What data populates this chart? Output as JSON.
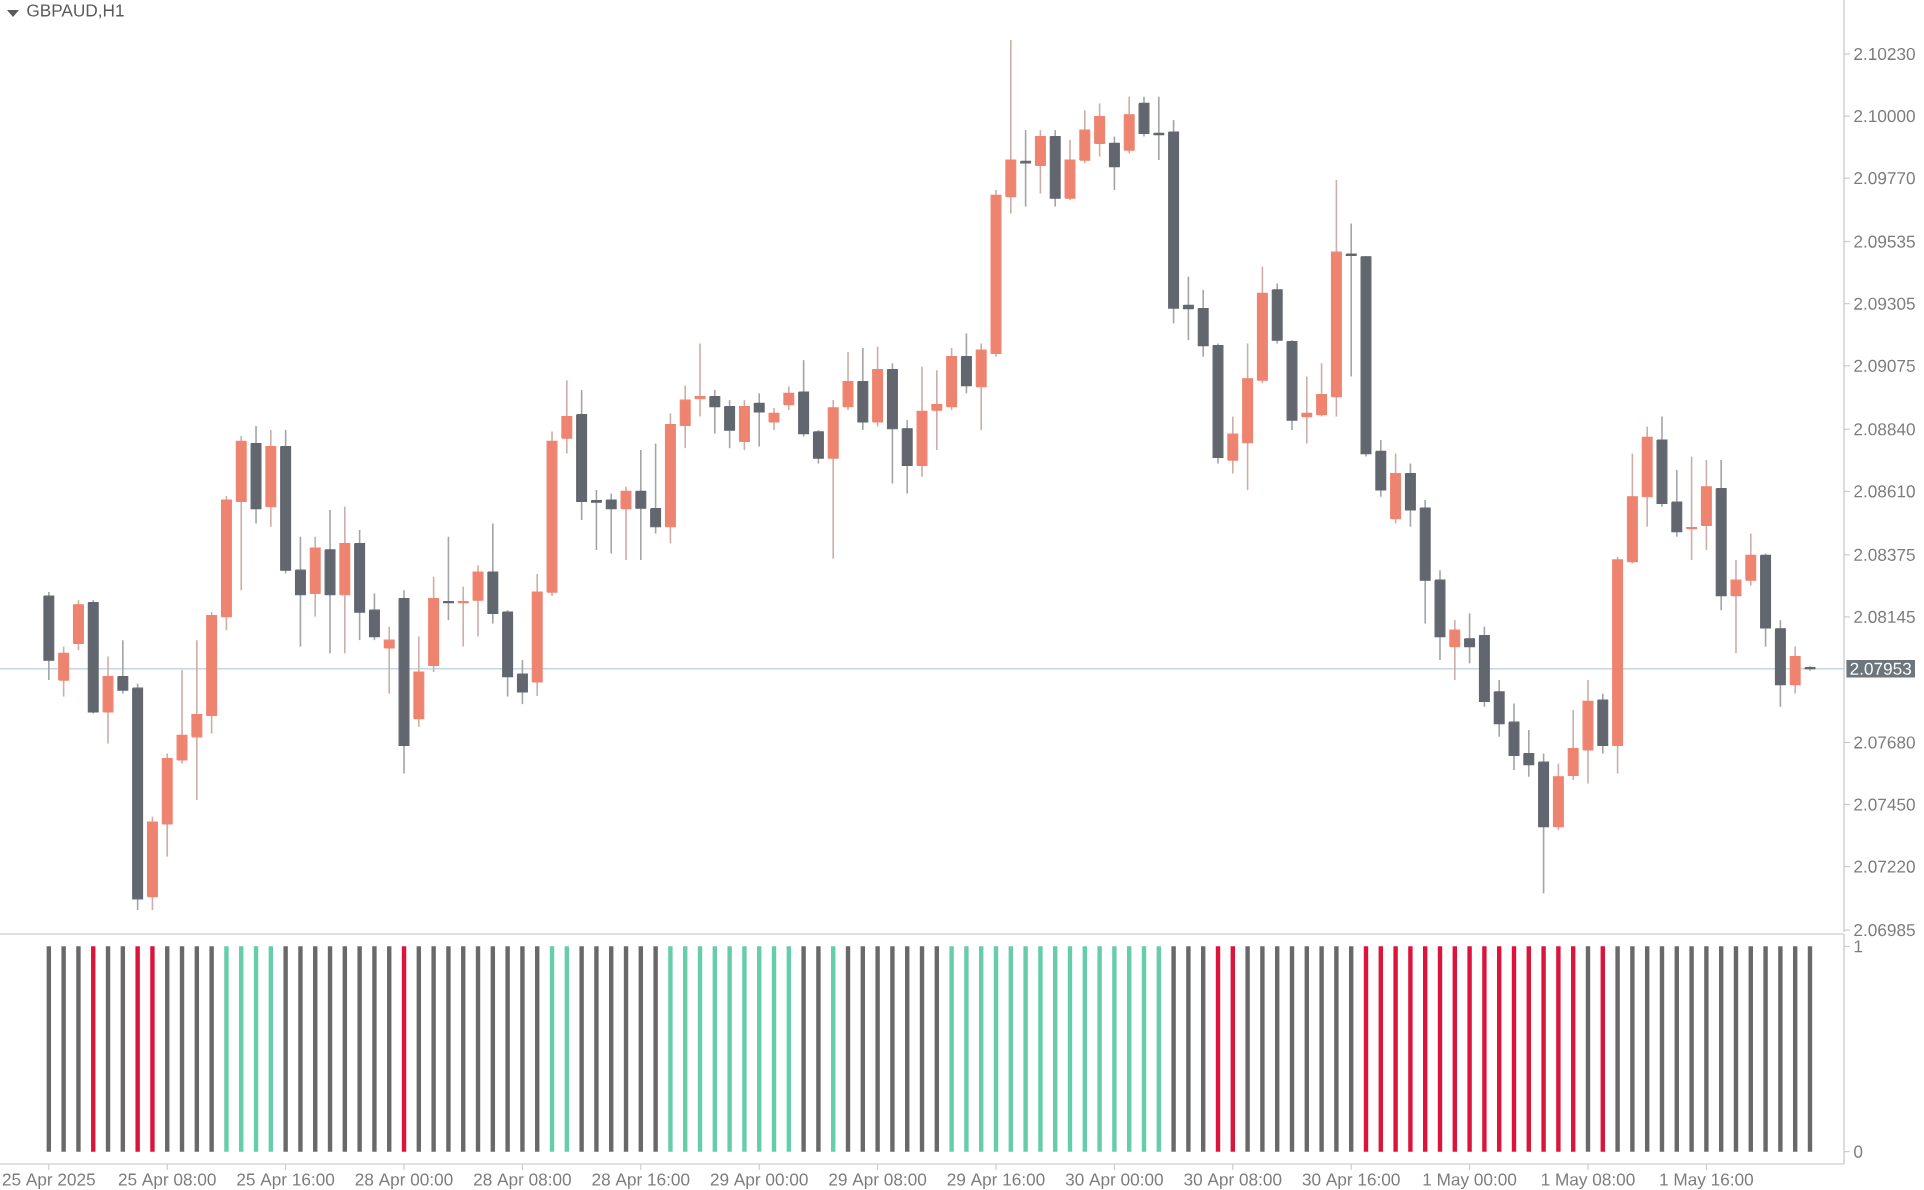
{
  "chart_data": [
    {
      "type": "candlestick",
      "title": "GBPAUD,H1",
      "categories": [
        null,
        null,
        null,
        null,
        null,
        null,
        null,
        null,
        null,
        null,
        null,
        null,
        null,
        null,
        null,
        null,
        null,
        null,
        null,
        null,
        null,
        null,
        null,
        null,
        null,
        null,
        null,
        null,
        null,
        null,
        null,
        null,
        null,
        null,
        null,
        null,
        null,
        null,
        null,
        null,
        null,
        null,
        null,
        null,
        null,
        null,
        null,
        null,
        null,
        null,
        null,
        null,
        null,
        null,
        null,
        null,
        null,
        null,
        null,
        null,
        null,
        null,
        null,
        null,
        null,
        null,
        null,
        null,
        null,
        null,
        null,
        null,
        null,
        null,
        null,
        null,
        null,
        null,
        null,
        null,
        null,
        null,
        null,
        null,
        null,
        null,
        null,
        null,
        null,
        null,
        null,
        null,
        null,
        null,
        null,
        null,
        null,
        null,
        null,
        null,
        null,
        null,
        null,
        null,
        null,
        null,
        null,
        null,
        null,
        null,
        null,
        null,
        null,
        null,
        null,
        null,
        null,
        null,
        null,
        null
      ],
      "ohlc": [
        [
          2.08222,
          2.08237,
          2.07911,
          2.07985
        ],
        [
          2.07911,
          2.08035,
          2.0785,
          2.0801
        ],
        [
          2.08047,
          2.08207,
          2.08022,
          2.0819
        ],
        [
          2.08198,
          2.08207,
          2.07787,
          2.07793
        ],
        [
          2.07793,
          2.07998,
          2.07676,
          2.07924
        ],
        [
          2.07924,
          2.08059,
          2.07861,
          2.07874
        ],
        [
          2.07881,
          2.07898,
          2.07059,
          2.07101
        ],
        [
          2.07109,
          2.07405,
          2.07059,
          2.07385
        ],
        [
          2.07378,
          2.07639,
          2.07257,
          2.0762
        ],
        [
          2.07615,
          2.07948,
          2.07602,
          2.07706
        ],
        [
          2.07701,
          2.08059,
          2.07467,
          2.07783
        ],
        [
          2.0778,
          2.08163,
          2.07713,
          2.0815
        ],
        [
          2.08146,
          2.08593,
          2.08096,
          2.08578
        ],
        [
          2.08573,
          2.08815,
          2.08244,
          2.08795
        ],
        [
          2.08787,
          2.08852,
          2.08491,
          2.08546
        ],
        [
          2.08553,
          2.08837,
          2.08479,
          2.08776
        ],
        [
          2.08776,
          2.08837,
          2.08306,
          2.08318
        ],
        [
          2.08318,
          2.08442,
          2.08035,
          2.08227
        ],
        [
          2.08232,
          2.08442,
          2.08146,
          2.084
        ],
        [
          2.08393,
          2.08541,
          2.0801,
          2.08227
        ],
        [
          2.08227,
          2.08553,
          2.0801,
          2.08417
        ],
        [
          2.08417,
          2.08467,
          2.08059,
          2.08163
        ],
        [
          2.0817,
          2.08232,
          2.08059,
          2.08072
        ],
        [
          2.0803,
          2.08109,
          2.07861,
          2.08059
        ],
        [
          2.08213,
          2.08244,
          2.07565,
          2.07669
        ],
        [
          2.07768,
          2.08072,
          2.07738,
          2.07941
        ],
        [
          2.07965,
          2.08294,
          2.07941,
          2.08213
        ],
        [
          2.08202,
          2.08442,
          2.08133,
          2.08198
        ],
        [
          2.08198,
          2.08257,
          2.08035,
          2.08202
        ],
        [
          2.08207,
          2.08336,
          2.08072,
          2.08311
        ],
        [
          2.08311,
          2.08491,
          2.08121,
          2.08158
        ],
        [
          2.08163,
          2.0817,
          2.0785,
          2.07924
        ],
        [
          2.07933,
          2.07985,
          2.07822,
          2.07867
        ],
        [
          2.07904,
          2.08304,
          2.07852,
          2.08237
        ],
        [
          2.08237,
          2.08832,
          2.08222,
          2.08795
        ],
        [
          2.08807,
          2.09022,
          2.0875,
          2.08887
        ],
        [
          2.08894,
          2.08985,
          2.08504,
          2.08573
        ],
        [
          2.08576,
          2.08615,
          2.08393,
          2.0857
        ],
        [
          2.08578,
          2.08602,
          2.0838,
          2.08546
        ],
        [
          2.08546,
          2.08627,
          2.08356,
          2.0861
        ],
        [
          2.0861,
          2.08763,
          2.08356,
          2.08548
        ],
        [
          2.08546,
          2.08787,
          2.08454,
          2.08479
        ],
        [
          2.08479,
          2.08899,
          2.08417,
          2.08857
        ],
        [
          2.08854,
          2.09002,
          2.0877,
          2.08948
        ],
        [
          2.08953,
          2.09158,
          2.08887,
          2.08961
        ],
        [
          2.08961,
          2.08985,
          2.08824,
          2.08924
        ],
        [
          2.08924,
          2.08948,
          2.0877,
          2.08837
        ],
        [
          2.08795,
          2.08948,
          2.08763,
          2.08924
        ],
        [
          2.08936,
          2.08973,
          2.08776,
          2.08904
        ],
        [
          2.08867,
          2.08919,
          2.08837,
          2.08899
        ],
        [
          2.08931,
          2.08998,
          2.08911,
          2.08973
        ],
        [
          2.08978,
          2.09096,
          2.08813,
          2.08824
        ],
        [
          2.0883,
          2.08837,
          2.08713,
          2.08733
        ],
        [
          2.08733,
          2.08948,
          2.08361,
          2.08919
        ],
        [
          2.08924,
          2.09126,
          2.08911,
          2.09017
        ],
        [
          2.09017,
          2.09141,
          2.08837,
          2.08867
        ],
        [
          2.08867,
          2.09146,
          2.0885,
          2.09061
        ],
        [
          2.09061,
          2.09084,
          2.08639,
          2.08842
        ],
        [
          2.08842,
          2.08874,
          2.08602,
          2.08706
        ],
        [
          2.08706,
          2.09072,
          2.08664,
          2.08906
        ],
        [
          2.08911,
          2.09059,
          2.08763,
          2.08931
        ],
        [
          2.08924,
          2.09141,
          2.08911,
          2.09109
        ],
        [
          2.09109,
          2.09195,
          2.08973,
          2.09002
        ],
        [
          2.08998,
          2.09158,
          2.08837,
          2.09133
        ],
        [
          2.09121,
          2.09726,
          2.09109,
          2.09706
        ],
        [
          2.09702,
          2.10282,
          2.09639,
          2.09837
        ],
        [
          2.09832,
          2.09948,
          2.09665,
          2.09827
        ],
        [
          2.09817,
          2.09948,
          2.09713,
          2.09924
        ],
        [
          2.09924,
          2.09948,
          2.09665,
          2.09696
        ],
        [
          2.09696,
          2.09911,
          2.09689,
          2.09837
        ],
        [
          2.09837,
          2.10022,
          2.09825,
          2.09948
        ],
        [
          2.09899,
          2.10047,
          2.0985,
          2.09998
        ],
        [
          2.09899,
          2.09924,
          2.09726,
          2.09813
        ],
        [
          2.09874,
          2.10072,
          2.09862,
          2.10005
        ],
        [
          2.10047,
          2.10072,
          2.09924,
          2.09936
        ],
        [
          2.09936,
          2.10072,
          2.09837,
          2.09931
        ],
        [
          2.09941,
          2.09985,
          2.09232,
          2.09289
        ],
        [
          2.09299,
          2.09405,
          2.0917,
          2.09287
        ],
        [
          2.09287,
          2.09356,
          2.09109,
          2.0915
        ],
        [
          2.0915,
          2.09158,
          2.08713,
          2.08736
        ],
        [
          2.08726,
          2.08887,
          2.08676,
          2.08822
        ],
        [
          2.0879,
          2.09158,
          2.08615,
          2.09027
        ],
        [
          2.09022,
          2.09442,
          2.0901,
          2.09343
        ],
        [
          2.09356,
          2.0938,
          2.09158,
          2.0917
        ],
        [
          2.09165,
          2.0917,
          2.08837,
          2.08874
        ],
        [
          2.08887,
          2.09035,
          2.08787,
          2.08899
        ],
        [
          2.08894,
          2.09084,
          2.08887,
          2.08968
        ],
        [
          2.08961,
          2.09763,
          2.08887,
          2.09496
        ],
        [
          2.09489,
          2.09602,
          2.09035,
          2.09484
        ],
        [
          2.09479,
          2.09481,
          2.08739,
          2.0875
        ],
        [
          2.08758,
          2.088,
          2.0859,
          2.08615
        ],
        [
          2.08509,
          2.0875,
          2.08491,
          2.08676
        ],
        [
          2.08676,
          2.08713,
          2.08479,
          2.08541
        ],
        [
          2.08548,
          2.08578,
          2.08121,
          2.08281
        ],
        [
          2.08281,
          2.08318,
          2.07985,
          2.08072
        ],
        [
          2.08035,
          2.08133,
          2.07911,
          2.08096
        ],
        [
          2.08064,
          2.08158,
          2.07973,
          2.08035
        ],
        [
          2.08076,
          2.08109,
          2.07812,
          2.07832
        ],
        [
          2.07867,
          2.07911,
          2.07701,
          2.0775
        ],
        [
          2.07755,
          2.07824,
          2.07578,
          2.07632
        ],
        [
          2.07639,
          2.07726,
          2.07553,
          2.07598
        ],
        [
          2.07607,
          2.07639,
          2.07121,
          2.07368
        ],
        [
          2.07368,
          2.07602,
          2.07355,
          2.07553
        ],
        [
          2.07558,
          2.078,
          2.07541,
          2.07657
        ],
        [
          2.07652,
          2.07911,
          2.07528,
          2.07832
        ],
        [
          2.07837,
          2.07861,
          2.07639,
          2.07669
        ],
        [
          2.07669,
          2.08368,
          2.07565,
          2.08356
        ],
        [
          2.0835,
          2.0875,
          2.08343,
          2.0859
        ],
        [
          2.0859,
          2.0885,
          2.08479,
          2.0881
        ],
        [
          2.088,
          2.08887,
          2.08553,
          2.08565
        ],
        [
          2.0857,
          2.08689,
          2.08442,
          2.08461
        ],
        [
          2.08472,
          2.08739,
          2.08356,
          2.08476
        ],
        [
          2.08484,
          2.08726,
          2.08393,
          2.08627
        ],
        [
          2.0862,
          2.08726,
          2.0817,
          2.08224
        ],
        [
          2.08224,
          2.08356,
          2.0801,
          2.08281
        ],
        [
          2.08281,
          2.08454,
          2.08261,
          2.08373
        ],
        [
          2.08373,
          2.0838,
          2.08035,
          2.08104
        ],
        [
          2.08101,
          2.08133,
          2.07812,
          2.07894
        ],
        [
          2.07894,
          2.08035,
          2.07861,
          2.07998
        ],
        [
          2.07957,
          2.07962,
          2.07946,
          2.07953
        ]
      ],
      "colors": [
        "#62666e",
        "#ee8470",
        "#ee8470",
        "#62666e",
        "#ee8470",
        "#62666e",
        "#62666e",
        "#ee8470",
        "#ee8470",
        "#ee8470",
        "#ee8470",
        "#ee8470",
        "#ee8470",
        "#ee8470",
        "#62666e",
        "#ee8470",
        "#62666e",
        "#62666e",
        "#ee8470",
        "#62666e",
        "#ee8470",
        "#62666e",
        "#62666e",
        "#ee8470",
        "#62666e",
        "#ee8470",
        "#ee8470",
        "#62666e",
        "#ee8470",
        "#ee8470",
        "#62666e",
        "#62666e",
        "#62666e",
        "#ee8470",
        "#ee8470",
        "#ee8470",
        "#62666e",
        "#62666e",
        "#62666e",
        "#ee8470",
        "#62666e",
        "#62666e",
        "#ee8470",
        "#ee8470",
        "#ee8470",
        "#62666e",
        "#62666e",
        "#ee8470",
        "#62666e",
        "#ee8470",
        "#ee8470",
        "#62666e",
        "#62666e",
        "#ee8470",
        "#ee8470",
        "#62666e",
        "#ee8470",
        "#62666e",
        "#62666e",
        "#ee8470",
        "#ee8470",
        "#ee8470",
        "#62666e",
        "#ee8470",
        "#ee8470",
        "#ee8470",
        "#62666e",
        "#ee8470",
        "#62666e",
        "#ee8470",
        "#ee8470",
        "#ee8470",
        "#62666e",
        "#ee8470",
        "#62666e",
        "#62666e",
        "#62666e",
        "#62666e",
        "#62666e",
        "#62666e",
        "#ee8470",
        "#ee8470",
        "#ee8470",
        "#62666e",
        "#62666e",
        "#ee8470",
        "#ee8470",
        "#ee8470",
        "#62666e",
        "#62666e",
        "#62666e",
        "#ee8470",
        "#62666e",
        "#62666e",
        "#62666e",
        "#ee8470",
        "#62666e",
        "#62666e",
        "#62666e",
        "#62666e",
        "#62666e",
        "#62666e",
        "#ee8470",
        "#ee8470",
        "#ee8470",
        "#62666e",
        "#ee8470",
        "#ee8470",
        "#ee8470",
        "#62666e",
        "#62666e",
        "#ee8470",
        "#ee8470",
        "#62666e",
        "#ee8470",
        "#ee8470",
        "#62666e",
        "#62666e",
        "#ee8470",
        "#62666e"
      ],
      "ylim": [
        2.06978,
        2.1043
      ],
      "yticks": [
        {
          "value": 2.06985,
          "label": "2.06985"
        },
        {
          "value": 2.0722,
          "label": "2.07220"
        },
        {
          "value": 2.0745,
          "label": "2.07450"
        },
        {
          "value": 2.0768,
          "label": "2.07680"
        },
        {
          "value": 2.08145,
          "label": "2.08145"
        },
        {
          "value": 2.08375,
          "label": "2.08375"
        },
        {
          "value": 2.0861,
          "label": "2.08610"
        },
        {
          "value": 2.0884,
          "label": "2.08840"
        },
        {
          "value": 2.09075,
          "label": "2.09075"
        },
        {
          "value": 2.09305,
          "label": "2.09305"
        },
        {
          "value": 2.09535,
          "label": "2.09535"
        },
        {
          "value": 2.0977,
          "label": "2.09770"
        },
        {
          "value": 2.1,
          "label": "2.10000"
        },
        {
          "value": 2.1023,
          "label": "2.10230"
        }
      ],
      "ref_lines": [
        {
          "axis": "y",
          "value": 2.07953,
          "label": "2.07953",
          "color": "#c6d6e3"
        }
      ],
      "tick_labels": "y"
    },
    {
      "type": "bar",
      "categories": [
        "25 Apr 2025",
        null,
        null,
        null,
        null,
        null,
        null,
        null,
        "25 Apr 08:00",
        null,
        null,
        null,
        null,
        null,
        null,
        null,
        "25 Apr 16:00",
        null,
        null,
        null,
        null,
        null,
        null,
        null,
        "28 Apr 00:00",
        null,
        null,
        null,
        null,
        null,
        null,
        null,
        "28 Apr 08:00",
        null,
        null,
        null,
        null,
        null,
        null,
        null,
        "28 Apr 16:00",
        null,
        null,
        null,
        null,
        null,
        null,
        null,
        "29 Apr 00:00",
        null,
        null,
        null,
        null,
        null,
        null,
        null,
        "29 Apr 08:00",
        null,
        null,
        null,
        null,
        null,
        null,
        null,
        "29 Apr 16:00",
        null,
        null,
        null,
        null,
        null,
        null,
        null,
        "30 Apr 00:00",
        null,
        null,
        null,
        null,
        null,
        null,
        null,
        "30 Apr 08:00",
        null,
        null,
        null,
        null,
        null,
        null,
        null,
        "30 Apr 16:00",
        null,
        null,
        null,
        null,
        null,
        null,
        null,
        "1 May 00:00",
        null,
        null,
        null,
        null,
        null,
        null,
        null,
        "1 May 08:00",
        null,
        null,
        null,
        null,
        null,
        null,
        null,
        "1 May 16:00",
        null,
        null,
        null,
        null,
        null,
        null,
        null
      ],
      "values": [
        1,
        1,
        1,
        1,
        1,
        1,
        1,
        1,
        1,
        1,
        1,
        1,
        1,
        1,
        1,
        1,
        1,
        1,
        1,
        1,
        1,
        1,
        1,
        1,
        1,
        1,
        1,
        1,
        1,
        1,
        1,
        1,
        1,
        1,
        1,
        1,
        1,
        1,
        1,
        1,
        1,
        1,
        1,
        1,
        1,
        1,
        1,
        1,
        1,
        1,
        1,
        1,
        1,
        1,
        1,
        1,
        1,
        1,
        1,
        1,
        1,
        1,
        1,
        1,
        1,
        1,
        1,
        1,
        1,
        1,
        1,
        1,
        1,
        1,
        1,
        1,
        1,
        1,
        1,
        1,
        1,
        1,
        1,
        1,
        1,
        1,
        1,
        1,
        1,
        1,
        1,
        1,
        1,
        1,
        1,
        1,
        1,
        1,
        1,
        1,
        1,
        1,
        1,
        1,
        1,
        1,
        1,
        1,
        1,
        1,
        1,
        1,
        1,
        1,
        1,
        1,
        1,
        1,
        1,
        1
      ],
      "colors": [
        "#696969",
        "#696969",
        "#696969",
        "#dc143c",
        "#696969",
        "#696969",
        "#dc143c",
        "#dc143c",
        "#696969",
        "#696969",
        "#696969",
        "#696969",
        "#66cdaa",
        "#66cdaa",
        "#66cdaa",
        "#66cdaa",
        "#696969",
        "#696969",
        "#696969",
        "#696969",
        "#696969",
        "#696969",
        "#696969",
        "#696969",
        "#dc143c",
        "#696969",
        "#696969",
        "#696969",
        "#696969",
        "#696969",
        "#696969",
        "#696969",
        "#696969",
        "#696969",
        "#66cdaa",
        "#66cdaa",
        "#696969",
        "#696969",
        "#696969",
        "#696969",
        "#696969",
        "#696969",
        "#66cdaa",
        "#66cdaa",
        "#66cdaa",
        "#66cdaa",
        "#66cdaa",
        "#66cdaa",
        "#66cdaa",
        "#66cdaa",
        "#66cdaa",
        "#696969",
        "#696969",
        "#66cdaa",
        "#696969",
        "#696969",
        "#696969",
        "#696969",
        "#696969",
        "#696969",
        "#696969",
        "#66cdaa",
        "#66cdaa",
        "#66cdaa",
        "#66cdaa",
        "#66cdaa",
        "#66cdaa",
        "#66cdaa",
        "#66cdaa",
        "#66cdaa",
        "#66cdaa",
        "#66cdaa",
        "#66cdaa",
        "#66cdaa",
        "#66cdaa",
        "#66cdaa",
        "#696969",
        "#696969",
        "#696969",
        "#dc143c",
        "#dc143c",
        "#696969",
        "#696969",
        "#696969",
        "#696969",
        "#696969",
        "#696969",
        "#696969",
        "#696969",
        "#dc143c",
        "#dc143c",
        "#dc143c",
        "#dc143c",
        "#dc143c",
        "#dc143c",
        "#dc143c",
        "#dc143c",
        "#dc143c",
        "#dc143c",
        "#dc143c",
        "#dc143c",
        "#dc143c",
        "#dc143c",
        "#dc143c",
        "#696969",
        "#dc143c",
        "#696969",
        "#696969",
        "#696969",
        "#696969",
        "#696969",
        "#696969",
        "#696969",
        "#696969",
        "#696969",
        "#696969",
        "#696969",
        "#696969",
        "#696969",
        "#696969"
      ],
      "ylim": [
        -0.06,
        1.06
      ],
      "yticks": [
        0,
        1
      ]
    }
  ]
}
